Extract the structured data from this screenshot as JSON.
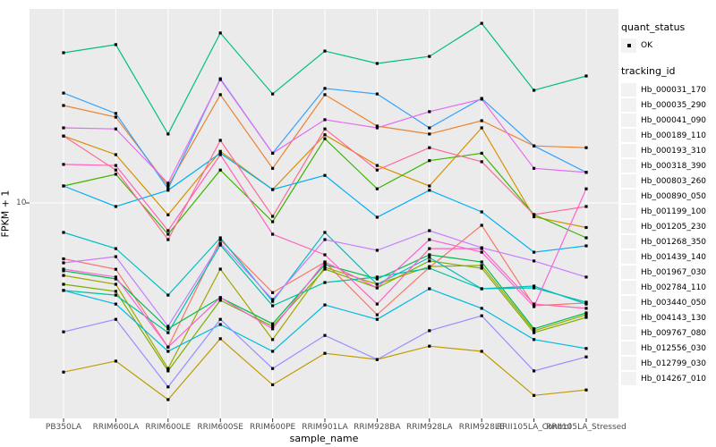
{
  "colors": {
    "panel_bg": "#ebebeb",
    "grid": "#ffffff",
    "point": "#000000",
    "axis_text": "#4d4d4d",
    "title_text": "#000000",
    "legend_key_bg": "#f2f2f2"
  },
  "axes": {
    "y_tick_label": "10",
    "x_title": "sample_name",
    "y_title": "FPKM + 1"
  },
  "legend": {
    "quant_title": "quant_status",
    "quant_items": [
      "OK"
    ],
    "tracking_title": "tracking_id"
  },
  "chart_data": {
    "type": "line",
    "title": "",
    "xlabel": "sample_name",
    "ylabel": "FPKM + 1",
    "y_scale": "log10",
    "y_ticks": [
      10
    ],
    "ylim": [
      1.0,
      100
    ],
    "grid": "on",
    "legend_position": "right",
    "point_shape": "square",
    "point_color": "#000000",
    "categories": [
      "PB350LA",
      "RRIM600LA",
      "RRIM600LE",
      "RRIM600SE",
      "RRIM600PE",
      "RRIM901LA",
      "RRIM928BA",
      "RRIM928LA",
      "RRIM928LE",
      "RRII105LA_Control",
      "RRII105LA_Stressed"
    ],
    "quant_status": "OK",
    "series": [
      {
        "name": "Hb_000031_170",
        "color": "#F8766D",
        "values": [
          5.2,
          4.6,
          1.85,
          6.5,
          3.5,
          5.0,
          2.7,
          4.7,
          7.7,
          3.0,
          3.1
        ]
      },
      {
        "name": "Hb_000035_290",
        "color": "#EA8331",
        "values": [
          31.3,
          27.3,
          12.2,
          35.5,
          15.0,
          35.5,
          24.6,
          22.4,
          26.2,
          19.5,
          19.1
        ]
      },
      {
        "name": "Hb_000041_090",
        "color": "#D89000",
        "values": [
          21.9,
          17.6,
          8.7,
          18.3,
          11.7,
          22.2,
          15.5,
          12.2,
          24.1,
          8.5,
          7.5
        ]
      },
      {
        "name": "Hb_000189_110",
        "color": "#C09B00",
        "values": [
          1.38,
          1.57,
          1.0,
          2.04,
          1.19,
          1.72,
          1.6,
          1.87,
          1.76,
          1.05,
          1.12
        ]
      },
      {
        "name": "Hb_000193_310",
        "color": "#A3A500",
        "values": [
          4.28,
          3.86,
          1.44,
          4.61,
          2.02,
          4.71,
          3.86,
          4.75,
          4.81,
          2.24,
          2.7
        ]
      },
      {
        "name": "Hb_000318_390",
        "color": "#7CAE00",
        "values": [
          3.86,
          3.55,
          1.4,
          3.2,
          2.36,
          4.61,
          3.7,
          5.07,
          4.66,
          2.19,
          2.62
        ]
      },
      {
        "name": "Hb_000803_260",
        "color": "#39B600",
        "values": [
          12.2,
          14.0,
          6.93,
          14.7,
          8.03,
          21.2,
          11.8,
          16.4,
          17.9,
          8.73,
          6.65
        ]
      },
      {
        "name": "Hb_000890_050",
        "color": "#00BB4E",
        "values": [
          4.52,
          4.11,
          2.29,
          3.3,
          2.43,
          4.86,
          4.11,
          5.45,
          5.01,
          2.29,
          2.76
        ]
      },
      {
        "name": "Hb_001199_100",
        "color": "#00BF7D",
        "values": [
          58.0,
          63.8,
          22.4,
          73.1,
          35.8,
          59.2,
          51.2,
          55.6,
          81.9,
          37.4,
          44.2
        ]
      },
      {
        "name": "Hb_001205_230",
        "color": "#00C1A3",
        "values": [
          3.59,
          3.4,
          2.19,
          6.11,
          3.0,
          3.94,
          4.2,
          4.66,
          3.66,
          3.7,
          3.13
        ]
      },
      {
        "name": "Hb_001268_350",
        "color": "#00BFC4",
        "values": [
          7.08,
          5.86,
          3.4,
          6.65,
          3.16,
          7.08,
          3.86,
          5.28,
          3.66,
          3.78,
          3.06
        ]
      },
      {
        "name": "Hb_001439_140",
        "color": "#00BAE0",
        "values": [
          3.59,
          3.06,
          1.76,
          2.41,
          1.76,
          3.03,
          2.56,
          3.66,
          2.91,
          2.02,
          1.82
        ]
      },
      {
        "name": "Hb_001967_030",
        "color": "#00B0F6",
        "values": [
          12.2,
          9.59,
          11.6,
          17.9,
          11.7,
          13.8,
          8.46,
          11.6,
          9.01,
          5.62,
          6.05
        ]
      },
      {
        "name": "Hb_002784_110",
        "color": "#35A2FF",
        "values": [
          36.2,
          28.5,
          11.8,
          42.8,
          17.9,
          38.2,
          35.8,
          24.1,
          34.0,
          19.5,
          14.3
        ]
      },
      {
        "name": "Hb_003440_050",
        "color": "#9590FF",
        "values": [
          2.21,
          2.56,
          1.16,
          2.56,
          1.44,
          2.12,
          1.6,
          2.24,
          2.67,
          1.4,
          1.65
        ]
      },
      {
        "name": "Hb_004143_130",
        "color": "#C77CFF",
        "values": [
          4.96,
          5.33,
          2.36,
          6.24,
          3.23,
          6.51,
          5.74,
          7.23,
          5.92,
          5.07,
          4.2
        ]
      },
      {
        "name": "Hb_009767_080",
        "color": "#E76BF3",
        "values": [
          24.1,
          23.8,
          12.6,
          42.4,
          17.9,
          26.5,
          24.1,
          29.1,
          33.7,
          15.0,
          14.3
        ]
      },
      {
        "name": "Hb_012556_030",
        "color": "#FA62DB",
        "values": [
          4.61,
          4.2,
          1.85,
          3.3,
          2.29,
          5.01,
          3.7,
          6.51,
          5.62,
          2.97,
          11.8
        ]
      },
      {
        "name": "Hb_012799_030",
        "color": "#FF62BC",
        "values": [
          15.7,
          15.5,
          7.23,
          17.6,
          6.93,
          5.45,
          3.06,
          5.86,
          5.86,
          3.06,
          2.91
        ]
      },
      {
        "name": "Hb_014267_010",
        "color": "#FF6A98",
        "values": [
          21.9,
          14.7,
          6.51,
          20.8,
          8.55,
          23.8,
          14.7,
          19.1,
          16.2,
          8.73,
          9.59
        ]
      }
    ]
  }
}
